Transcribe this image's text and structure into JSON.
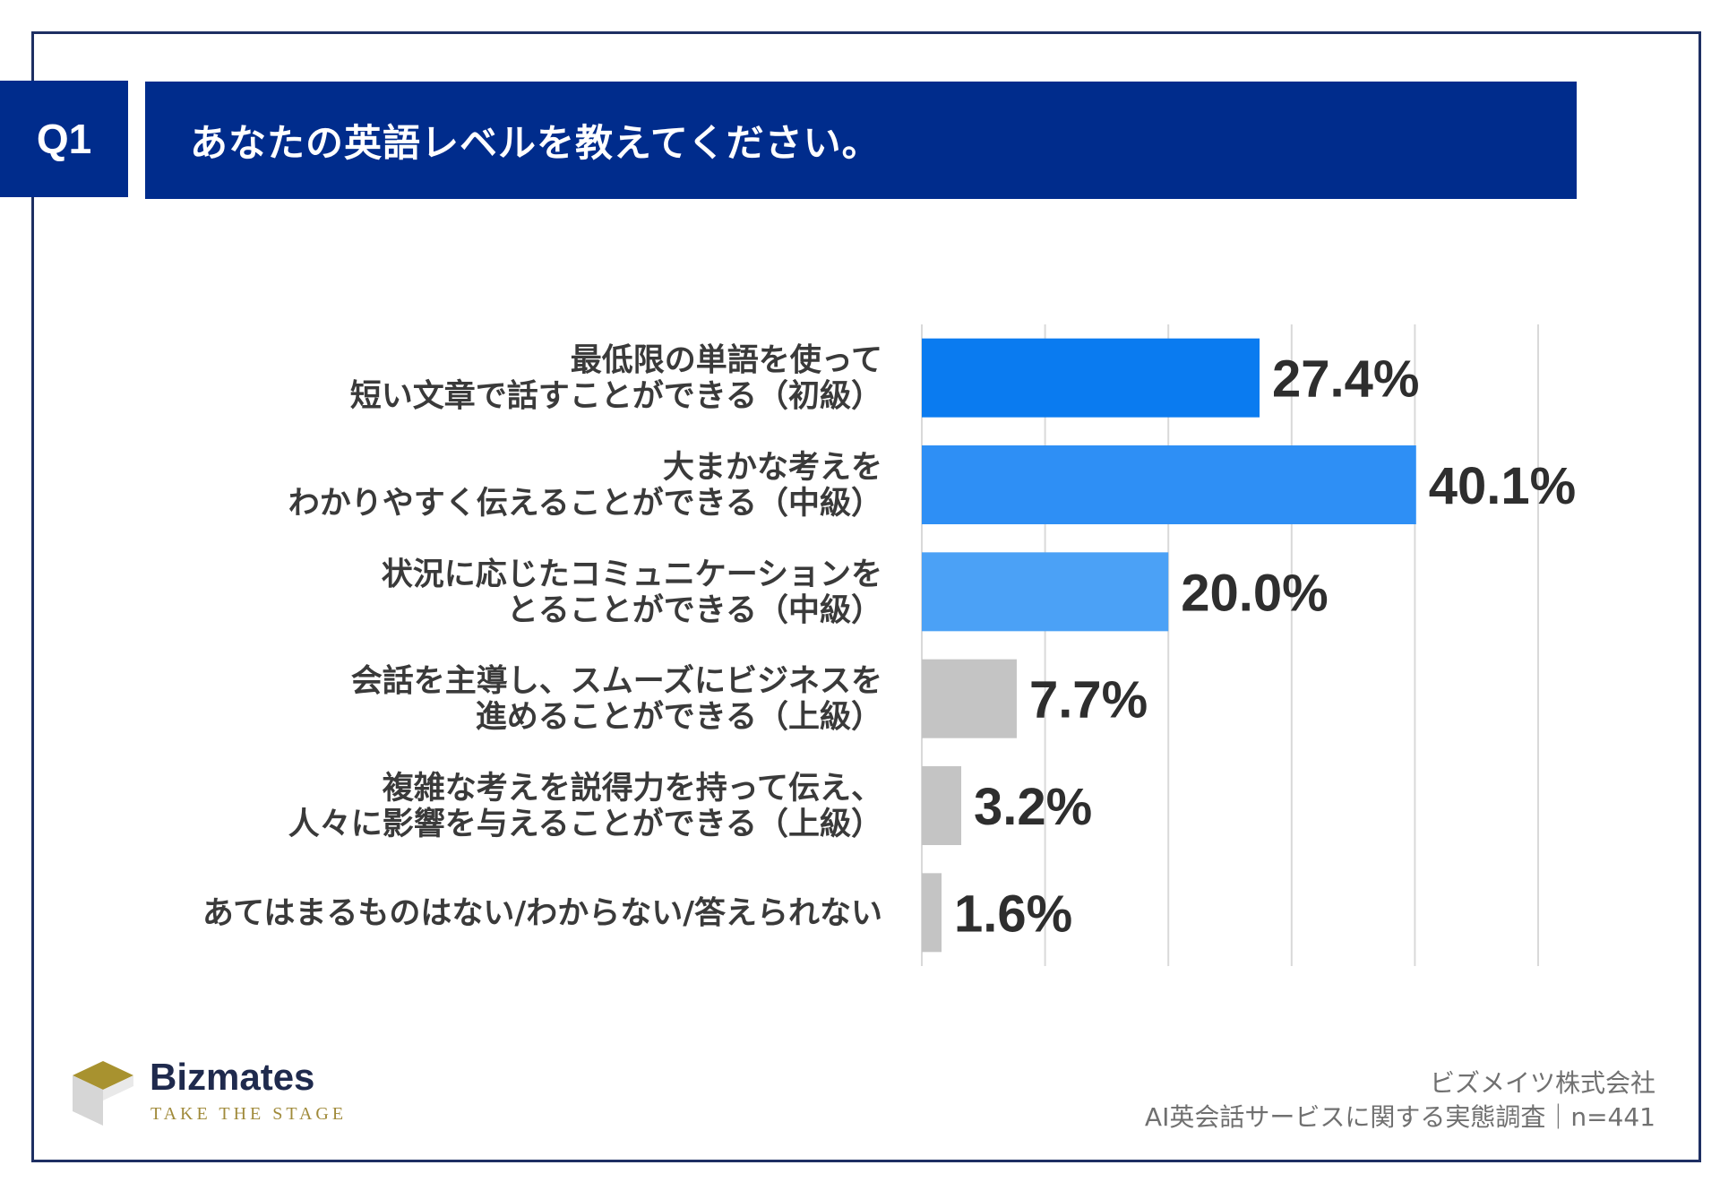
{
  "header": {
    "question_id": "Q1",
    "question_text": "あなたの英語レベルを教えてください。"
  },
  "chart_data": {
    "type": "bar",
    "orientation": "horizontal",
    "title": "",
    "xlabel": "",
    "ylabel": "",
    "xlim": [
      0,
      50
    ],
    "grid": true,
    "categories": [
      [
        "最低限の単語を使って",
        "短い文章で話すことができる（初級）"
      ],
      [
        "大まかな考えを",
        "わかりやすく伝えることができる（中級）"
      ],
      [
        "状況に応じたコミュニケーションを",
        "とることができる（中級）"
      ],
      [
        "会話を主導し、スムーズにビジネスを",
        "進めることができる（上級）"
      ],
      [
        "複雑な考えを説得力を持って伝え、",
        "人々に影響を与えることができる（上級）"
      ],
      [
        "あてはまるものはない/わからない/答えられない"
      ]
    ],
    "values": [
      27.4,
      40.1,
      20.0,
      7.7,
      3.2,
      1.6
    ],
    "value_labels": [
      "27.4%",
      "40.1%",
      "20.0%",
      "7.7%",
      "3.2%",
      "1.6%"
    ],
    "bar_colors": [
      "#0a7bf0",
      "#2e8ff5",
      "#4ba1f6",
      "#c4c4c4",
      "#c4c4c4",
      "#c4c4c4"
    ],
    "grid_color": "#d9d9d9"
  },
  "logo": {
    "name": "Bizmates",
    "tagline": "TAKE THE STAGE",
    "colors": {
      "gold": "#a8922f",
      "grey": "#cfcfcf"
    }
  },
  "footer": {
    "company": "ビズメイツ株式会社",
    "survey": "AI英会話サービスに関する実態調査｜n=441"
  }
}
